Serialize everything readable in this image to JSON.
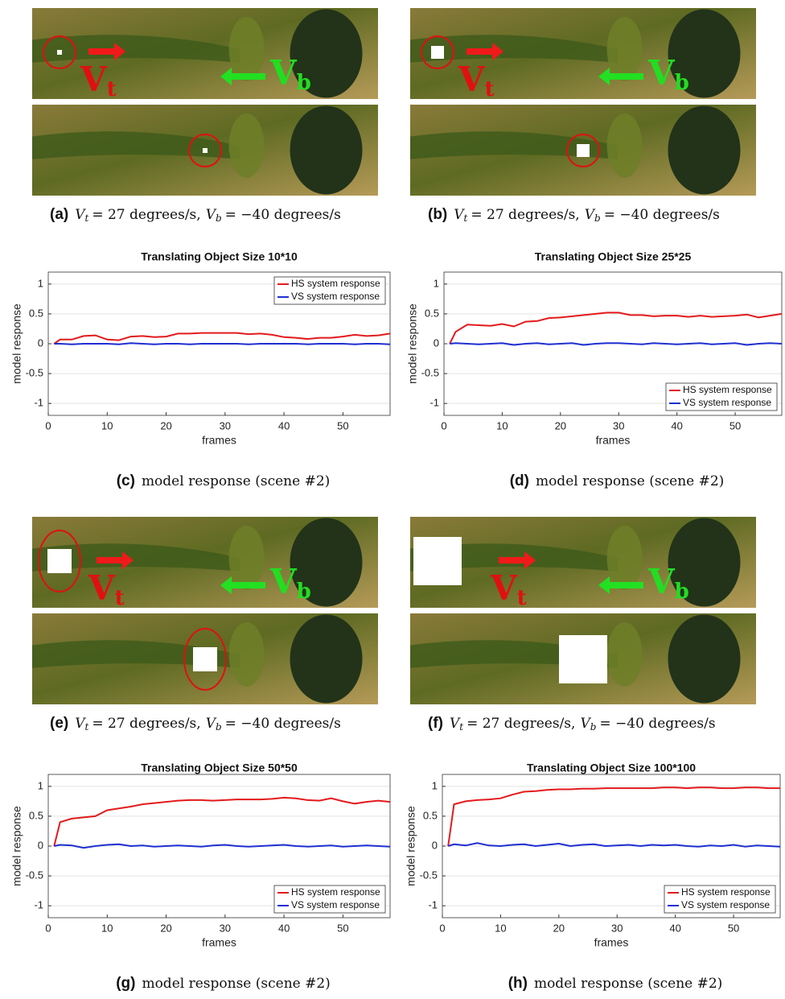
{
  "image_panels": [
    {
      "label": "(a)",
      "var1": "V",
      "sub1": "t",
      "eq1": "= 27 degrees/s,",
      "var2": "V",
      "sub2": "b",
      "eq2": "= −40 degrees/s",
      "arrow_target": "V",
      "arrow_target_sub": "t",
      "arrow_bg": "V",
      "arrow_bg_sub": "b"
    },
    {
      "label": "(b)",
      "var1": "V",
      "sub1": "t",
      "eq1": "= 27 degrees/s,",
      "var2": "V",
      "sub2": "b",
      "eq2": "= −40 degrees/s",
      "arrow_target": "V",
      "arrow_target_sub": "t",
      "arrow_bg": "V",
      "arrow_bg_sub": "b"
    },
    {
      "label": "(e)",
      "var1": "V",
      "sub1": "t",
      "eq1": "= 27 degrees/s,",
      "var2": "V",
      "sub2": "b",
      "eq2": "= −40 degrees/s",
      "arrow_target": "V",
      "arrow_target_sub": "t",
      "arrow_bg": "V",
      "arrow_bg_sub": "b"
    },
    {
      "label": "(f)",
      "var1": "V",
      "sub1": "t",
      "eq1": "= 27 degrees/s,",
      "var2": "V",
      "sub2": "b",
      "eq2": "= −40 degrees/s",
      "arrow_target": "V",
      "arrow_target_sub": "t",
      "arrow_bg": "V",
      "arrow_bg_sub": "b"
    }
  ],
  "chart_data": [
    {
      "type": "line",
      "title": "Translating Object Size 10*10",
      "xlabel": "frames",
      "ylabel": "model response",
      "caption_label": "(c)",
      "caption": "model response (scene #2)",
      "x": [
        1,
        2,
        4,
        6,
        8,
        10,
        12,
        14,
        16,
        18,
        20,
        22,
        24,
        26,
        28,
        30,
        32,
        34,
        36,
        38,
        40,
        42,
        44,
        46,
        48,
        50,
        52,
        54,
        56,
        58
      ],
      "series": [
        {
          "name": "HS system response",
          "color": "#e31a1c",
          "values": [
            0,
            0.07,
            0.07,
            0.13,
            0.14,
            0.07,
            0.06,
            0.12,
            0.13,
            0.11,
            0.12,
            0.17,
            0.17,
            0.18,
            0.18,
            0.18,
            0.18,
            0.16,
            0.17,
            0.15,
            0.11,
            0.1,
            0.08,
            0.1,
            0.1,
            0.12,
            0.15,
            0.13,
            0.14,
            0.17
          ]
        },
        {
          "name": "VS system response",
          "color": "#1f2fd0",
          "values": [
            0,
            0,
            -0.01,
            0,
            0,
            0,
            -0.01,
            0.01,
            0,
            -0.01,
            0,
            0,
            -0.01,
            0,
            0,
            0,
            0,
            -0.01,
            0,
            0,
            0,
            0,
            -0.01,
            0,
            0,
            0,
            -0.01,
            0,
            0,
            -0.01
          ]
        }
      ],
      "xlim": [
        0,
        58
      ],
      "ylim": [
        -1.2,
        1.2
      ],
      "xticks": [
        0,
        10,
        20,
        30,
        40,
        50
      ],
      "yticks": [
        -1,
        -0.5,
        0,
        0.5,
        1
      ],
      "grid": true,
      "legend": "upper right"
    },
    {
      "type": "line",
      "title": "Translating Object Size 25*25",
      "xlabel": "frames",
      "ylabel": "model response",
      "caption_label": "(d)",
      "caption": "model response (scene #2)",
      "x": [
        1,
        2,
        4,
        6,
        8,
        10,
        12,
        14,
        16,
        18,
        20,
        22,
        24,
        26,
        28,
        30,
        32,
        34,
        36,
        38,
        40,
        42,
        44,
        46,
        48,
        50,
        52,
        54,
        56,
        58
      ],
      "series": [
        {
          "name": "HS system response",
          "color": "#e31a1c",
          "values": [
            0,
            0.2,
            0.32,
            0.31,
            0.3,
            0.33,
            0.29,
            0.37,
            0.38,
            0.43,
            0.44,
            0.46,
            0.48,
            0.5,
            0.52,
            0.52,
            0.48,
            0.48,
            0.46,
            0.47,
            0.47,
            0.45,
            0.47,
            0.45,
            0.46,
            0.47,
            0.49,
            0.44,
            0.47,
            0.5
          ]
        },
        {
          "name": "VS system response",
          "color": "#1f2fd0",
          "values": [
            0,
            0.01,
            0,
            -0.01,
            0,
            0.01,
            -0.02,
            0,
            0.01,
            -0.01,
            0,
            0.01,
            -0.02,
            0,
            0.01,
            0.01,
            0,
            -0.01,
            0.01,
            0,
            -0.01,
            0,
            0.01,
            -0.01,
            0,
            0.01,
            -0.02,
            0,
            0.01,
            0
          ]
        }
      ],
      "xlim": [
        0,
        58
      ],
      "ylim": [
        -1.2,
        1.2
      ],
      "xticks": [
        0,
        10,
        20,
        30,
        40,
        50
      ],
      "yticks": [
        -1,
        -0.5,
        0,
        0.5,
        1
      ],
      "grid": true,
      "legend": "lower right"
    },
    {
      "type": "line",
      "title": "Translating Object Size 50*50",
      "xlabel": "frames",
      "ylabel": "model response",
      "caption_label": "(g)",
      "caption": "model response (scene #2)",
      "x": [
        1,
        2,
        4,
        6,
        8,
        10,
        12,
        14,
        16,
        18,
        20,
        22,
        24,
        26,
        28,
        30,
        32,
        34,
        36,
        38,
        40,
        42,
        44,
        46,
        48,
        50,
        52,
        54,
        56,
        58
      ],
      "series": [
        {
          "name": "HS system response",
          "color": "#e31a1c",
          "values": [
            0,
            0.4,
            0.46,
            0.48,
            0.5,
            0.6,
            0.63,
            0.66,
            0.7,
            0.72,
            0.74,
            0.76,
            0.77,
            0.77,
            0.76,
            0.77,
            0.78,
            0.78,
            0.78,
            0.79,
            0.81,
            0.8,
            0.77,
            0.76,
            0.8,
            0.75,
            0.71,
            0.74,
            0.76,
            0.74
          ]
        },
        {
          "name": "VS system response",
          "color": "#1f2fd0",
          "values": [
            0,
            0.02,
            0.01,
            -0.03,
            0,
            0.02,
            0.03,
            0,
            0.01,
            -0.01,
            0,
            0.01,
            0,
            -0.01,
            0.01,
            0.02,
            0,
            -0.01,
            0,
            0.01,
            0.02,
            0,
            -0.01,
            0,
            0.01,
            -0.01,
            0,
            0.01,
            0,
            -0.01
          ]
        }
      ],
      "xlim": [
        0,
        58
      ],
      "ylim": [
        -1.2,
        1.2
      ],
      "xticks": [
        0,
        10,
        20,
        30,
        40,
        50
      ],
      "yticks": [
        -1,
        -0.5,
        0,
        0.5,
        1
      ],
      "grid": true,
      "legend": "lower right"
    },
    {
      "type": "line",
      "title": "Translating Object Size 100*100",
      "xlabel": "frames",
      "ylabel": "model response",
      "caption_label": "(h)",
      "caption": "model response (scene #2)",
      "x": [
        1,
        2,
        4,
        6,
        8,
        10,
        12,
        14,
        16,
        18,
        20,
        22,
        24,
        26,
        28,
        30,
        32,
        34,
        36,
        38,
        40,
        42,
        44,
        46,
        48,
        50,
        52,
        54,
        56,
        58
      ],
      "series": [
        {
          "name": "HS system response",
          "color": "#e31a1c",
          "values": [
            0,
            0.7,
            0.75,
            0.77,
            0.78,
            0.8,
            0.86,
            0.91,
            0.92,
            0.94,
            0.95,
            0.95,
            0.96,
            0.96,
            0.97,
            0.97,
            0.97,
            0.97,
            0.97,
            0.98,
            0.98,
            0.97,
            0.98,
            0.98,
            0.97,
            0.97,
            0.98,
            0.98,
            0.97,
            0.97
          ]
        },
        {
          "name": "VS system response",
          "color": "#1f2fd0",
          "values": [
            0,
            0.03,
            0.01,
            0.05,
            0.01,
            0,
            0.02,
            0.03,
            0,
            0.02,
            0.04,
            0,
            0.02,
            0.03,
            0,
            0.01,
            0.02,
            0,
            0.02,
            0.01,
            0.02,
            0,
            -0.01,
            0.01,
            0,
            0.02,
            -0.01,
            0.01,
            0,
            -0.01
          ]
        }
      ],
      "xlim": [
        0,
        58
      ],
      "ylim": [
        -1.2,
        1.2
      ],
      "xticks": [
        0,
        10,
        20,
        30,
        40,
        50
      ],
      "yticks": [
        -1,
        -0.5,
        0,
        0.5,
        1
      ],
      "grid": true,
      "legend": "lower right"
    }
  ]
}
